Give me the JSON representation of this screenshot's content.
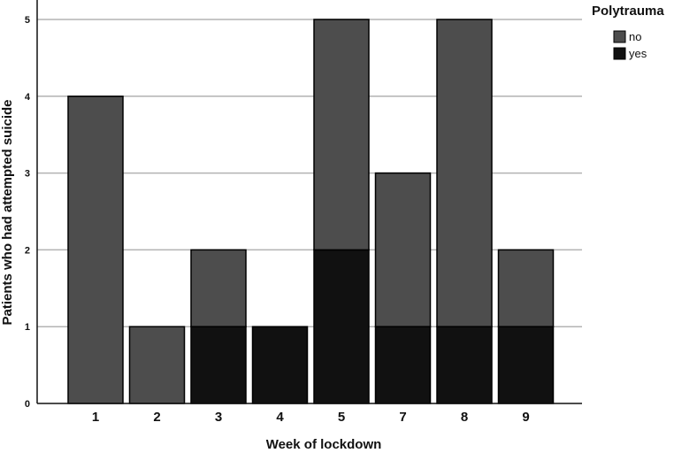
{
  "chart_data": {
    "type": "bar",
    "stacked": true,
    "title": "",
    "xlabel": "Week of lockdown",
    "ylabel": "Patients who had attempted suicide",
    "categories": [
      "1",
      "2",
      "3",
      "4",
      "5",
      "7",
      "8",
      "9"
    ],
    "series": [
      {
        "name": "yes",
        "values": [
          0,
          0,
          1,
          1,
          2,
          1,
          1,
          1
        ]
      },
      {
        "name": "no",
        "values": [
          4,
          1,
          1,
          0,
          3,
          2,
          4,
          1
        ]
      }
    ],
    "ylim": [
      0,
      5
    ],
    "yticks": [
      "0",
      "1",
      "2",
      "3",
      "4",
      "5"
    ],
    "grid": true,
    "legend": {
      "title": "Polytrauma",
      "position": "top-right",
      "entries": [
        "no",
        "yes"
      ]
    },
    "colors": {
      "no": "#4d4d4d",
      "yes": "#111111",
      "grid": "#b3b3b3",
      "axis": "#111111"
    }
  }
}
